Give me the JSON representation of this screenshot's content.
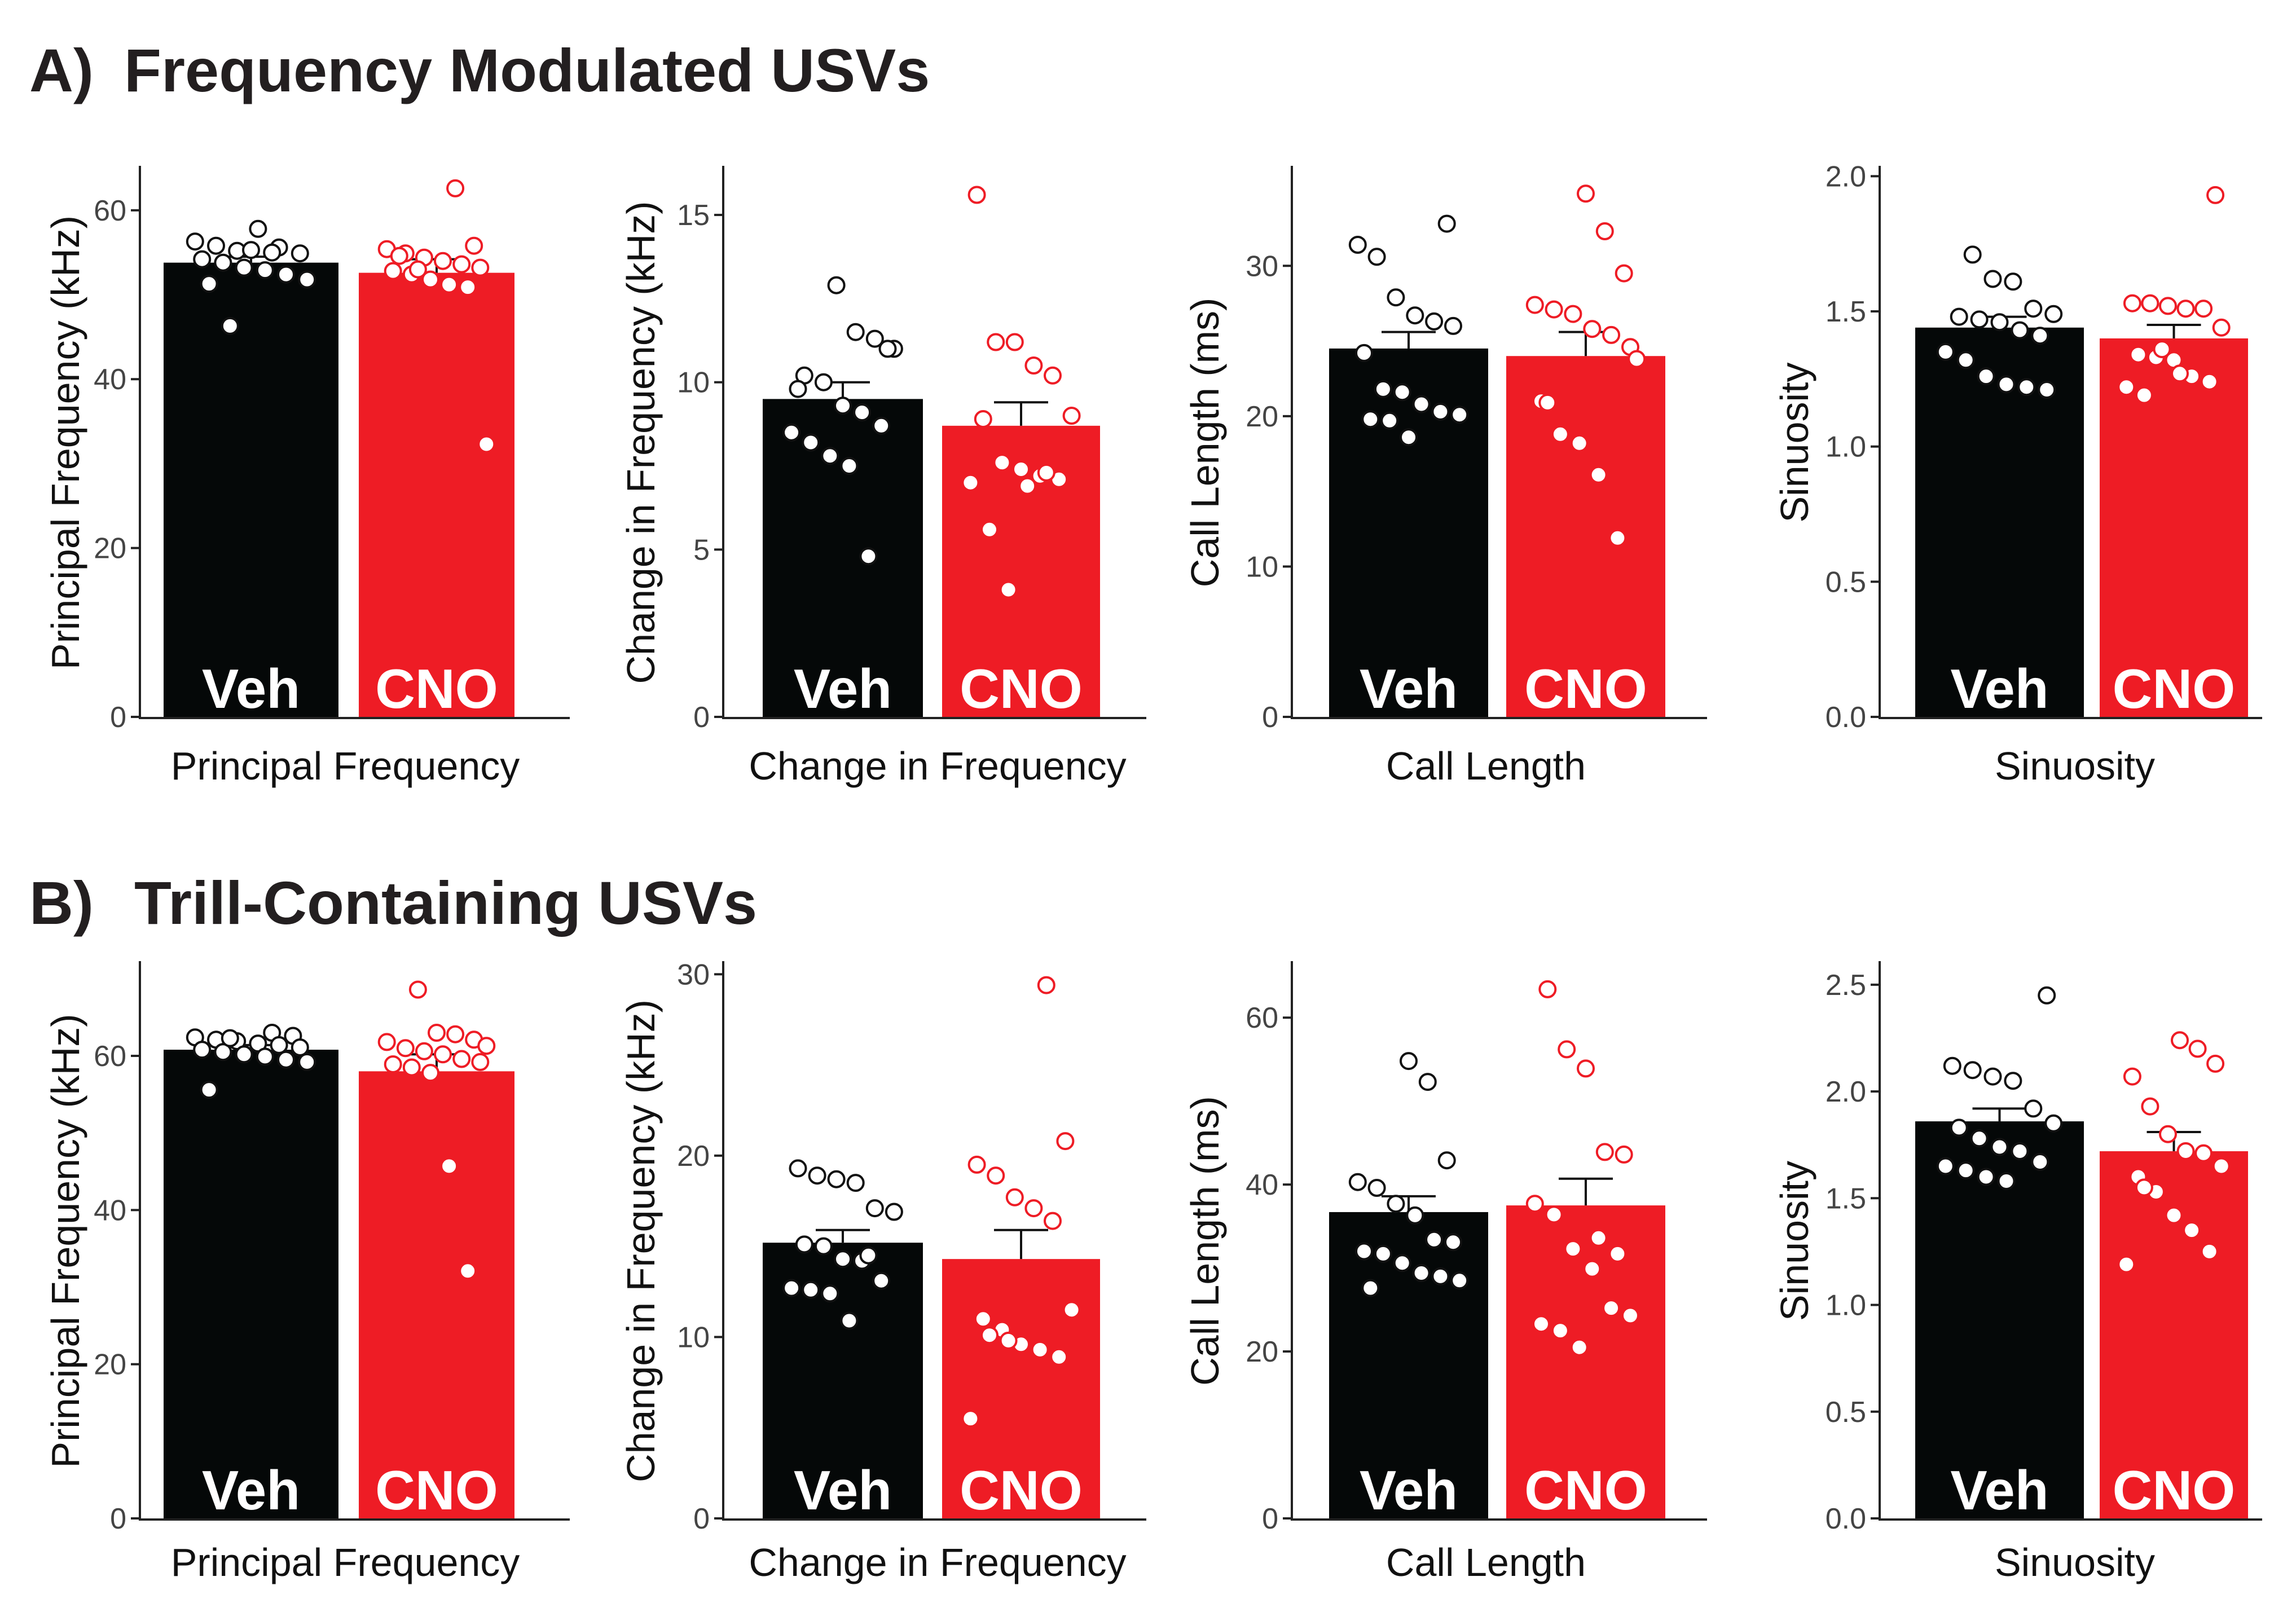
{
  "colors": {
    "veh": "#050808",
    "cno": "#ee1c25",
    "axis": "#222222",
    "title": "#231f20"
  },
  "panels": [
    {
      "letter": "A)",
      "title": "Frequency Modulated USVs"
    },
    {
      "letter": "B)",
      "title": "Trill-Containing USVs"
    }
  ],
  "chart_data": [
    {
      "type": "bar",
      "panel": "A",
      "title": "Principal Frequency",
      "xlabel": "Principal Frequency",
      "ylabel": "Principal Frequency (kHz)",
      "ylim": [
        0,
        65
      ],
      "yticks": [
        0,
        20,
        40,
        60
      ],
      "tick_labels": [
        "0",
        "20",
        "40",
        "60"
      ],
      "categories": [
        "Veh",
        "CNO"
      ],
      "values": [
        53.8,
        52.6
      ],
      "errors": [
        0.7,
        1.6
      ],
      "points": [
        [
          56.3,
          55.8,
          55.2,
          57.8,
          55.6,
          54.9,
          54.2,
          53.8,
          53.2,
          52.9,
          52.4,
          51.8,
          51.3,
          46.3,
          55.3,
          55.0
        ],
        [
          62.6,
          55.8,
          55.4,
          54.9,
          54.4,
          54.0,
          53.6,
          53.2,
          52.8,
          52.4,
          51.8,
          51.2,
          50.9,
          32.3,
          54.6,
          53.0
        ]
      ]
    },
    {
      "type": "bar",
      "panel": "A",
      "title": "Change in Frequency",
      "xlabel": "Change in Frequency",
      "ylabel": "Change in Frequency (kHz)",
      "ylim": [
        0,
        16.4
      ],
      "yticks": [
        0,
        5,
        10,
        15
      ],
      "tick_labels": [
        "0",
        "5",
        "10",
        "15"
      ],
      "categories": [
        "Veh",
        "CNO"
      ],
      "values": [
        9.5,
        8.7
      ],
      "errors": [
        0.5,
        0.7
      ],
      "points": [
        [
          12.9,
          11.5,
          11.3,
          11.0,
          10.2,
          10.0,
          9.3,
          9.1,
          8.7,
          8.5,
          8.2,
          7.8,
          7.5,
          4.8,
          11.0,
          9.8
        ],
        [
          15.6,
          11.2,
          11.2,
          10.5,
          10.2,
          9.0,
          8.9,
          7.6,
          7.4,
          7.2,
          7.1,
          7.0,
          5.6,
          3.8,
          6.9,
          7.3
        ]
      ]
    },
    {
      "type": "bar",
      "panel": "A",
      "title": "Call Length",
      "xlabel": "Call Length",
      "ylabel": "Call Length (ms)",
      "ylim": [
        0,
        36.5
      ],
      "yticks": [
        0,
        10,
        20,
        30
      ],
      "tick_labels": [
        "0",
        "10",
        "20",
        "30"
      ],
      "categories": [
        "Veh",
        "CNO"
      ],
      "values": [
        24.5,
        24.0
      ],
      "errors": [
        1.1,
        1.6
      ],
      "points": [
        [
          32.8,
          31.4,
          30.6,
          27.9,
          26.7,
          26.3,
          26.0,
          24.2,
          21.8,
          21.6,
          20.8,
          20.3,
          20.1,
          19.8,
          19.7,
          18.6
        ],
        [
          34.8,
          32.3,
          29.5,
          27.4,
          27.1,
          26.8,
          25.8,
          25.4,
          24.6,
          21.0,
          18.8,
          18.2,
          16.1,
          11.9,
          23.8,
          20.9
        ]
      ]
    },
    {
      "type": "bar",
      "panel": "A",
      "title": "Sinuosity",
      "xlabel": "Sinuosity",
      "ylabel": "Sinuosity",
      "ylim": [
        0,
        2.03
      ],
      "yticks": [
        0,
        0.5,
        1,
        1.5,
        2
      ],
      "tick_labels": [
        "0.0",
        "0.5",
        "1.0",
        "1.5",
        "2.0"
      ],
      "categories": [
        "Veh",
        "CNO"
      ],
      "values": [
        1.44,
        1.4
      ],
      "errors": [
        0.04,
        0.05
      ],
      "points": [
        [
          1.71,
          1.62,
          1.61,
          1.51,
          1.49,
          1.48,
          1.47,
          1.46,
          1.43,
          1.41,
          1.35,
          1.32,
          1.26,
          1.23,
          1.22,
          1.21
        ],
        [
          1.93,
          1.53,
          1.53,
          1.52,
          1.51,
          1.51,
          1.44,
          1.34,
          1.33,
          1.32,
          1.26,
          1.24,
          1.22,
          1.19,
          1.36,
          1.27
        ]
      ]
    },
    {
      "type": "bar",
      "panel": "B",
      "title": "Principal Frequency",
      "xlabel": "Principal Frequency",
      "ylabel": "Principal Frequency (kHz)",
      "ylim": [
        0,
        72
      ],
      "yticks": [
        0,
        20,
        40,
        60
      ],
      "tick_labels": [
        "0",
        "20",
        "40",
        "60"
      ],
      "categories": [
        "Veh",
        "CNO"
      ],
      "values": [
        60.8,
        58.0
      ],
      "errors": [
        0.6,
        2.2
      ],
      "points": [
        [
          63.0,
          62.6,
          62.4,
          62.1,
          61.9,
          61.6,
          61.4,
          61.1,
          60.8,
          60.5,
          60.2,
          59.9,
          59.5,
          59.2,
          55.6,
          62.3
        ],
        [
          68.6,
          63.0,
          62.8,
          62.1,
          61.8,
          61.0,
          60.6,
          60.2,
          59.6,
          59.2,
          58.9,
          58.5,
          57.8,
          45.7,
          32.1,
          61.3
        ]
      ]
    },
    {
      "type": "bar",
      "panel": "B",
      "title": "Change in Frequency",
      "xlabel": "Change in Frequency",
      "ylabel": "Change in Frequency (kHz)",
      "ylim": [
        0,
        30.6
      ],
      "yticks": [
        0,
        10,
        20,
        30
      ],
      "tick_labels": [
        "0",
        "10",
        "20",
        "30"
      ],
      "categories": [
        "Veh",
        "CNO"
      ],
      "values": [
        15.2,
        14.3
      ],
      "errors": [
        0.7,
        1.6
      ],
      "points": [
        [
          19.3,
          18.9,
          18.7,
          18.5,
          17.1,
          16.9,
          15.1,
          15.0,
          14.3,
          14.2,
          13.1,
          12.7,
          12.6,
          12.4,
          10.9,
          14.5
        ],
        [
          29.4,
          20.8,
          19.5,
          18.9,
          17.7,
          17.1,
          16.4,
          11.5,
          11.0,
          10.4,
          9.6,
          9.3,
          8.9,
          5.5,
          10.1,
          9.8
        ]
      ]
    },
    {
      "type": "bar",
      "panel": "B",
      "title": "Call Length",
      "xlabel": "Call Length",
      "ylabel": "Call Length (ms)",
      "ylim": [
        0,
        66.5
      ],
      "yticks": [
        0,
        20,
        40,
        60
      ],
      "tick_labels": [
        "0",
        "20",
        "40",
        "60"
      ],
      "categories": [
        "Veh",
        "CNO"
      ],
      "values": [
        36.7,
        37.5
      ],
      "errors": [
        1.9,
        3.2
      ],
      "points": [
        [
          54.8,
          52.3,
          42.9,
          40.3,
          39.6,
          37.7,
          36.3,
          33.4,
          33.1,
          32.0,
          31.7,
          30.6,
          29.4,
          29.0,
          28.5,
          27.6
        ],
        [
          63.4,
          56.2,
          53.9,
          43.9,
          43.6,
          37.7,
          36.4,
          32.3,
          29.9,
          25.2,
          24.3,
          23.3,
          22.5,
          20.5,
          33.6,
          31.7
        ]
      ]
    },
    {
      "type": "bar",
      "panel": "B",
      "title": "Sinuosity",
      "xlabel": "Sinuosity",
      "ylabel": "Sinuosity",
      "ylim": [
        0,
        2.6
      ],
      "yticks": [
        0,
        0.5,
        1,
        1.5,
        2,
        2.5
      ],
      "tick_labels": [
        "0.0",
        "0.5",
        "1.0",
        "1.5",
        "2.0",
        "2.5"
      ],
      "categories": [
        "Veh",
        "CNO"
      ],
      "values": [
        1.86,
        1.72
      ],
      "errors": [
        0.06,
        0.09
      ],
      "points": [
        [
          2.45,
          2.12,
          2.1,
          2.07,
          2.05,
          1.92,
          1.85,
          1.83,
          1.78,
          1.74,
          1.72,
          1.67,
          1.65,
          1.63,
          1.6,
          1.58
        ],
        [
          2.24,
          2.2,
          2.13,
          2.07,
          1.93,
          1.8,
          1.72,
          1.71,
          1.65,
          1.6,
          1.53,
          1.42,
          1.35,
          1.25,
          1.19,
          1.55
        ]
      ]
    }
  ]
}
